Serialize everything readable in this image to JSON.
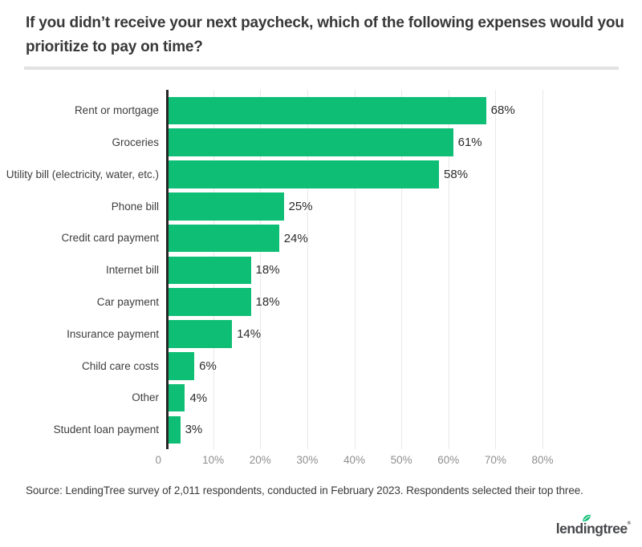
{
  "header": {
    "title_line1": "If you didn’t receive your next paycheck, which of the following expenses would you",
    "title_line2": "prioritize to pay on time?"
  },
  "chart_data": {
    "type": "bar",
    "orientation": "horizontal",
    "title": "If you didn’t receive your next paycheck, which of the following expenses would you prioritize to pay on time?",
    "categories": [
      "Rent or mortgage",
      "Groceries",
      "Utility bill (electricity, water, etc.)",
      "Phone bill",
      "Credit card payment",
      "Internet bill",
      "Car payment",
      "Insurance payment",
      "Child care costs",
      "Other",
      "Student loan payment"
    ],
    "values": [
      68,
      61,
      58,
      25,
      24,
      18,
      18,
      14,
      6,
      4,
      3
    ],
    "value_suffix": "%",
    "xlim": [
      0,
      80
    ],
    "x_ticks": [
      0,
      10,
      20,
      30,
      40,
      50,
      60,
      70,
      80
    ],
    "x_tick_labels": [
      "0",
      "10%",
      "20%",
      "30%",
      "40%",
      "50%",
      "60%",
      "70%",
      "80%"
    ],
    "grid": true,
    "legend": "none"
  },
  "footer": {
    "source": "Source: LendingTree survey of 2,011 respondents, conducted in February 2023. Respondents selected their top three.",
    "logo_text": "lendingtree",
    "logo_mark": "®"
  },
  "colors": {
    "bar": "#0ebe75",
    "grid": "#e8e8e8",
    "axis": "#262626",
    "leaf": "#0ebe75"
  }
}
